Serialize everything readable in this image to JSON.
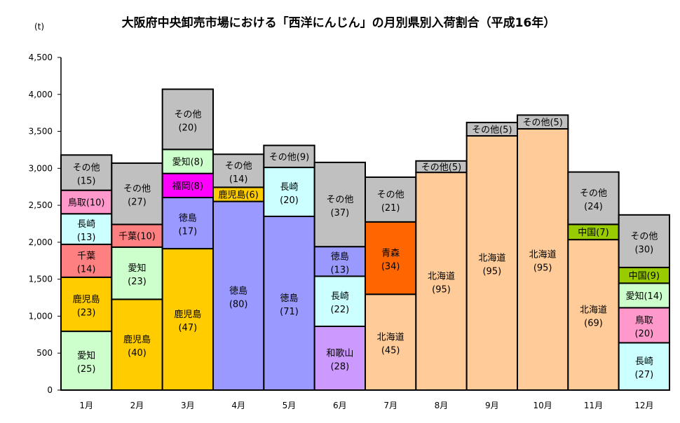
{
  "chart_data": {
    "type": "bar",
    "stacked": true,
    "title": "大阪府中央卸売市場における「西洋にんじん」の月別県別入荷割合（平成16年）",
    "ylabel": "(t)",
    "xlabel": "",
    "ylim": [
      0,
      4500
    ],
    "yticks": [
      "0",
      "500",
      "1,000",
      "1,500",
      "2,000",
      "2,500",
      "3,000",
      "3,500",
      "4,000",
      "4,500"
    ],
    "ytick_values": [
      0,
      500,
      1000,
      1500,
      2000,
      2500,
      3000,
      3500,
      4000,
      4500
    ],
    "grid": false,
    "colors": {
      "愛知": "#CCFFCC",
      "鹿児島": "#FFCC00",
      "千葉": "#FF8080",
      "長崎": "#CCFFFF",
      "鳥取": "#FF99CC",
      "その他": "#C0C0C0",
      "徳島": "#9999FF",
      "福岡": "#FF00FF",
      "和歌山": "#CC99FF",
      "北海道": "#FFCC99",
      "青森": "#FF6600",
      "中国": "#99CC00"
    },
    "categories": [
      "1月",
      "2月",
      "3月",
      "4月",
      "5月",
      "6月",
      "7月",
      "8月",
      "9月",
      "10月",
      "11月",
      "12月"
    ],
    "months": [
      {
        "label": "1月",
        "total": 3180,
        "segments": [
          {
            "name": "愛知",
            "pct": 25
          },
          {
            "name": "鹿児島",
            "pct": 23
          },
          {
            "name": "千葉",
            "pct": 14
          },
          {
            "name": "長崎",
            "pct": 13
          },
          {
            "name": "鳥取",
            "pct": 10
          },
          {
            "name": "その他",
            "pct": 15
          }
        ]
      },
      {
        "label": "2月",
        "total": 3070,
        "segments": [
          {
            "name": "鹿児島",
            "pct": 40
          },
          {
            "name": "愛知",
            "pct": 23
          },
          {
            "name": "千葉",
            "pct": 10
          },
          {
            "name": "その他",
            "pct": 27
          }
        ]
      },
      {
        "label": "3月",
        "total": 4070,
        "segments": [
          {
            "name": "鹿児島",
            "pct": 47
          },
          {
            "name": "徳島",
            "pct": 17
          },
          {
            "name": "福岡",
            "pct": 8
          },
          {
            "name": "愛知",
            "pct": 8
          },
          {
            "name": "その他",
            "pct": 20
          }
        ]
      },
      {
        "label": "4月",
        "total": 3190,
        "segments": [
          {
            "name": "徳島",
            "pct": 80
          },
          {
            "name": "鹿児島",
            "pct": 6
          },
          {
            "name": "その他",
            "pct": 14
          }
        ]
      },
      {
        "label": "5月",
        "total": 3310,
        "segments": [
          {
            "name": "徳島",
            "pct": 71
          },
          {
            "name": "長崎",
            "pct": 20
          },
          {
            "name": "その他",
            "pct": 9
          }
        ]
      },
      {
        "label": "6月",
        "total": 3080,
        "segments": [
          {
            "name": "和歌山",
            "pct": 28
          },
          {
            "name": "長崎",
            "pct": 22
          },
          {
            "name": "徳島",
            "pct": 13
          },
          {
            "name": "その他",
            "pct": 37
          }
        ]
      },
      {
        "label": "7月",
        "total": 2880,
        "segments": [
          {
            "name": "北海道",
            "pct": 45
          },
          {
            "name": "青森",
            "pct": 34
          },
          {
            "name": "その他",
            "pct": 21
          }
        ]
      },
      {
        "label": "8月",
        "total": 3100,
        "segments": [
          {
            "name": "北海道",
            "pct": 95
          },
          {
            "name": "その他",
            "pct": 5
          }
        ]
      },
      {
        "label": "9月",
        "total": 3620,
        "segments": [
          {
            "name": "北海道",
            "pct": 95
          },
          {
            "name": "その他",
            "pct": 5
          }
        ]
      },
      {
        "label": "10月",
        "total": 3720,
        "segments": [
          {
            "name": "北海道",
            "pct": 95
          },
          {
            "name": "その他",
            "pct": 5
          }
        ]
      },
      {
        "label": "11月",
        "total": 2950,
        "segments": [
          {
            "name": "北海道",
            "pct": 69
          },
          {
            "name": "中国",
            "pct": 7
          },
          {
            "name": "その他",
            "pct": 24
          }
        ]
      },
      {
        "label": "12月",
        "total": 2370,
        "segments": [
          {
            "name": "長崎",
            "pct": 27
          },
          {
            "name": "鳥取",
            "pct": 20
          },
          {
            "name": "愛知",
            "pct": 14
          },
          {
            "name": "中国",
            "pct": 9
          },
          {
            "name": "その他",
            "pct": 30
          }
        ]
      }
    ]
  }
}
